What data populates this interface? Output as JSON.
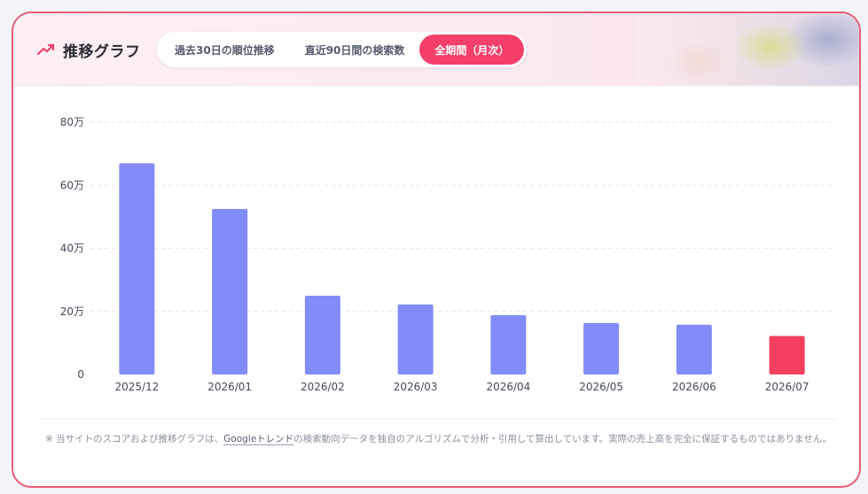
{
  "header": {
    "title": "推移グラフ",
    "icon": "trend-up-icon",
    "accent_color": "#f43f6a"
  },
  "tabs": [
    {
      "label": "過去30日の順位推移",
      "active": false
    },
    {
      "label": "直近90日間の検索数",
      "active": false
    },
    {
      "label": "全期間（月次）",
      "active": true
    }
  ],
  "chart_data": {
    "type": "bar",
    "categories": [
      "2025/12",
      "2026/01",
      "2026/02",
      "2026/03",
      "2026/04",
      "2026/05",
      "2026/06",
      "2026/07"
    ],
    "values": [
      670000,
      525000,
      250000,
      222000,
      188000,
      163000,
      158000,
      122000
    ],
    "ylim": [
      0,
      800000
    ],
    "yticks": [
      {
        "value": 0,
        "label": "0"
      },
      {
        "value": 200000,
        "label": "20万"
      },
      {
        "value": 400000,
        "label": "40万"
      },
      {
        "value": 600000,
        "label": "60万"
      },
      {
        "value": 800000,
        "label": "80万"
      }
    ],
    "grid": true,
    "bar_color": "#828cf8",
    "highlight_color": "#f43f5e",
    "highlight_index": 7,
    "title": "",
    "xlabel": "",
    "ylabel": ""
  },
  "footnote": {
    "prefix": "※ 当サイトのスコアおよび推移グラフは、",
    "link": "Googleトレンド",
    "suffix": "の検索動向データを独自のアルゴリズムで分析・引用して算出しています。実際の売上高を完全に保証するものではありません。"
  }
}
